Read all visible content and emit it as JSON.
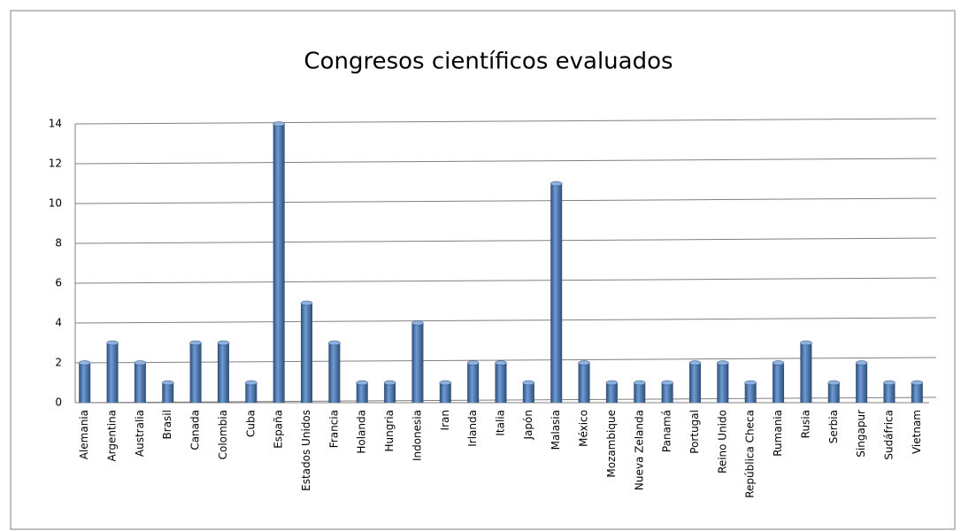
{
  "chart_data": {
    "type": "bar",
    "title": "Congresos científicos evaluados",
    "categories": [
      "Alemania",
      "Argentina",
      "Australia",
      "Brasil",
      "Canada",
      "Colombia",
      "Cuba",
      "España",
      "Estados Unidos",
      "Francia",
      "Holanda",
      "Hungria",
      "Indonesia",
      "Iran",
      "Irlanda",
      "Italia",
      "Japón",
      "Malasia",
      "México",
      "Mozambique",
      "Nueva Zelanda",
      "Panamá",
      "Portugal",
      "Reino Unido",
      "República Checa",
      "Rumania",
      "Rusia",
      "Serbia",
      "Singapur",
      "Sudáfrica",
      "Vietnam"
    ],
    "values": [
      2,
      3,
      2,
      1,
      3,
      3,
      1,
      14,
      5,
      3,
      1,
      1,
      4,
      1,
      2,
      2,
      1,
      11,
      2,
      1,
      1,
      1,
      2,
      2,
      1,
      2,
      3,
      1,
      2,
      1,
      1
    ],
    "color": "#4f81bd",
    "ylim": [
      0,
      14
    ],
    "yticks": [
      0,
      2,
      4,
      6,
      8,
      10,
      12,
      14
    ],
    "grid": true
  }
}
